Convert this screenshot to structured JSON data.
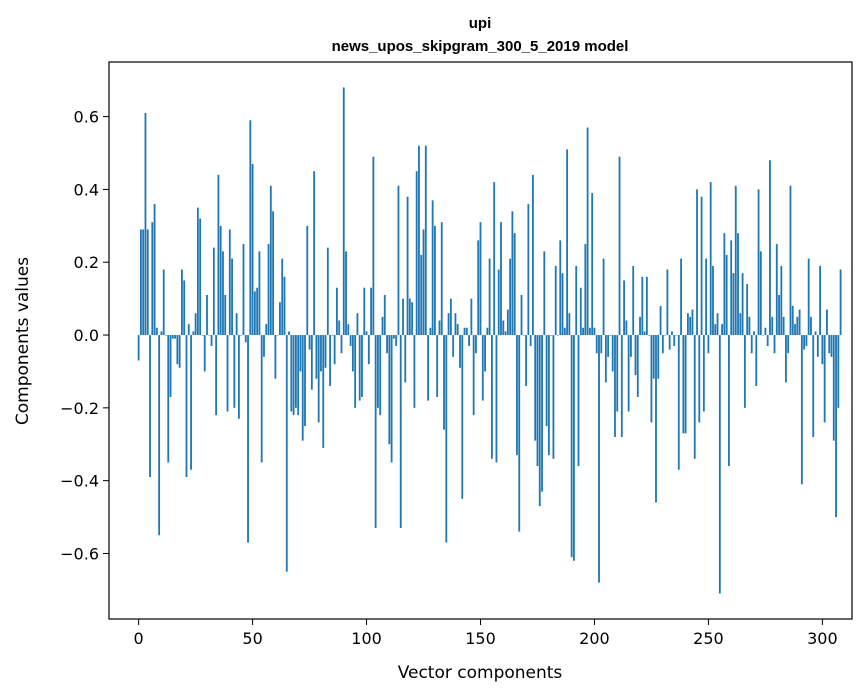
{
  "chart_data": {
    "type": "bar",
    "title": "upi",
    "subtitle": "news_upos_skipgram_300_5_2019 model",
    "xlabel": "Vector components",
    "ylabel": "Components values",
    "xlim": [
      -13,
      313
    ],
    "ylim": [
      -0.78,
      0.75
    ],
    "xticks": [
      0,
      50,
      100,
      150,
      200,
      250,
      300
    ],
    "yticks": [
      -0.6,
      -0.4,
      -0.2,
      0.0,
      0.2,
      0.4,
      0.6
    ],
    "xtick_labels": [
      "0",
      "50",
      "100",
      "150",
      "200",
      "250",
      "300"
    ],
    "ytick_labels": [
      "−0.6",
      "−0.4",
      "−0.2",
      "0.0",
      "0.2",
      "0.4",
      "0.6"
    ],
    "bar_color": "#1f77b4",
    "grid": false,
    "legend": "none",
    "values": [
      -0.07,
      0.29,
      0.29,
      0.61,
      0.29,
      -0.39,
      0.31,
      0.36,
      0.02,
      -0.55,
      0.01,
      0.18,
      0.0,
      -0.35,
      -0.17,
      -0.01,
      -0.01,
      -0.08,
      -0.09,
      0.18,
      0.15,
      -0.39,
      0.03,
      -0.37,
      0.01,
      0.06,
      0.35,
      0.32,
      0.0,
      -0.1,
      0.11,
      0.0,
      -0.03,
      0.24,
      -0.22,
      0.44,
      0.3,
      0.23,
      0.11,
      -0.21,
      0.29,
      0.21,
      -0.2,
      0.06,
      -0.23,
      0.0,
      0.25,
      -0.02,
      -0.57,
      0.59,
      0.47,
      0.12,
      0.13,
      0.23,
      -0.35,
      -0.06,
      0.03,
      0.25,
      0.41,
      0.34,
      -0.12,
      0.0,
      0.09,
      0.21,
      0.16,
      -0.65,
      0.01,
      -0.21,
      -0.22,
      -0.2,
      -0.22,
      -0.1,
      -0.29,
      -0.25,
      0.3,
      -0.04,
      -0.15,
      0.45,
      -0.12,
      -0.24,
      -0.1,
      -0.31,
      -0.09,
      0.24,
      -0.14,
      0.0,
      -0.08,
      0.13,
      0.04,
      -0.05,
      0.68,
      0.23,
      0.03,
      -0.03,
      -0.1,
      -0.2,
      0.06,
      -0.18,
      -0.17,
      0.13,
      0.01,
      -0.08,
      0.13,
      0.49,
      -0.53,
      -0.2,
      -0.22,
      0.05,
      0.11,
      -0.05,
      -0.3,
      -0.35,
      -0.01,
      -0.03,
      0.41,
      -0.53,
      0.1,
      -0.13,
      0.38,
      0.1,
      0.09,
      -0.2,
      0.45,
      0.52,
      0.22,
      0.29,
      0.52,
      -0.18,
      0.02,
      0.37,
      0.3,
      -0.17,
      0.04,
      0.31,
      -0.26,
      -0.57,
      0.06,
      0.1,
      -0.06,
      0.06,
      0.03,
      -0.09,
      -0.45,
      0.02,
      0.02,
      -0.03,
      0.1,
      -0.22,
      -0.05,
      0.26,
      0.31,
      -0.18,
      -0.1,
      0.02,
      0.21,
      -0.34,
      0.42,
      -0.35,
      0.18,
      0.31,
      0.04,
      0.01,
      0.07,
      0.21,
      0.34,
      0.28,
      -0.33,
      -0.54,
      0.11,
      0.0,
      -0.14,
      0.36,
      -0.03,
      0.44,
      -0.29,
      -0.36,
      -0.47,
      -0.43,
      0.23,
      -0.25,
      -0.33,
      0.0,
      -0.34,
      0.19,
      0.0,
      0.26,
      0.17,
      0.02,
      0.51,
      0.06,
      -0.61,
      -0.62,
      0.19,
      -0.36,
      0.13,
      0.02,
      0.25,
      0.57,
      0.02,
      0.39,
      0.02,
      -0.05,
      -0.68,
      -0.05,
      0.21,
      -0.13,
      -0.06,
      0.0,
      -0.1,
      -0.28,
      -0.21,
      0.49,
      -0.28,
      0.15,
      0.04,
      -0.21,
      -0.06,
      0.19,
      -0.11,
      -0.17,
      0.05,
      0.16,
      0.01,
      0.16,
      0.0,
      -0.24,
      -0.12,
      -0.46,
      -0.12,
      0.08,
      -0.05,
      0.0,
      0.18,
      -0.04,
      0.01,
      -0.03,
      0.0,
      -0.37,
      0.21,
      -0.27,
      -0.27,
      0.06,
      0.05,
      0.07,
      -0.34,
      0.4,
      -0.24,
      0.38,
      -0.21,
      0.21,
      -0.05,
      0.42,
      0.19,
      0.03,
      0.06,
      -0.71,
      0.03,
      0.28,
      0.22,
      -0.36,
      0.26,
      0.17,
      0.41,
      0.28,
      0.06,
      0.17,
      -0.2,
      0.14,
      0.05,
      -0.05,
      0.01,
      -0.14,
      0.4,
      0.23,
      0.0,
      0.02,
      -0.03,
      0.48,
      0.05,
      -0.05,
      0.25,
      0.11,
      0.19,
      0.05,
      -0.13,
      -0.05,
      0.41,
      0.08,
      0.03,
      0.05,
      0.07,
      -0.41,
      -0.04,
      -0.03,
      0.21,
      0.05,
      -0.28,
      0.01,
      -0.06,
      0.19,
      -0.08,
      -0.24,
      0.07,
      -0.05,
      -0.06,
      -0.29,
      -0.5,
      -0.2,
      0.18
    ]
  }
}
